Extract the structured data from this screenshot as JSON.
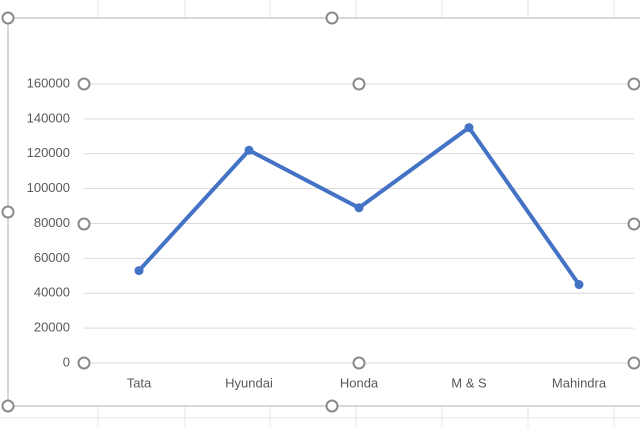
{
  "chart_data": {
    "type": "line",
    "categories": [
      "Tata",
      "Hyundai",
      "Honda",
      "M & S",
      "Mahindra"
    ],
    "series": [
      {
        "color": "#4472c4",
        "values": [
          53000,
          122000,
          89000,
          135000,
          45000
        ]
      }
    ],
    "ylim": [
      0,
      160000
    ],
    "yticks": [
      0,
      20000,
      40000,
      60000,
      80000,
      100000,
      120000,
      140000,
      160000
    ],
    "grid": true
  }
}
